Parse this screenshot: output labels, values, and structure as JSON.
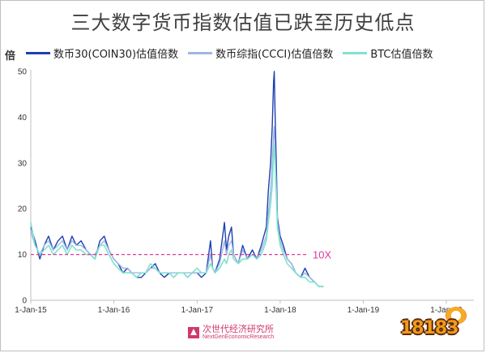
{
  "chart_data": {
    "type": "line",
    "title": "三大数字货币指数估值已跌至历史低点",
    "ylabel": "倍",
    "ylim": [
      0,
      50
    ],
    "y_ticks": [
      0,
      10,
      20,
      30,
      40,
      50
    ],
    "x_ticks": [
      "1-Jan-15",
      "1-Jan-16",
      "1-Jan-17",
      "1-Jan-18",
      "1-Jan-19",
      "1-Jan-20"
    ],
    "xlim": [
      "2015-01-01",
      "2020-05-01"
    ],
    "grid": false,
    "legend_position": "top",
    "reference_line": {
      "value": 10,
      "label": "10X",
      "color": "#e0399a"
    },
    "series": [
      {
        "name": "数币30(COIN30)估值倍数",
        "color": "#1f3fb0",
        "points": [
          [
            "2015-01-01",
            16
          ],
          [
            "2015-01-20",
            13
          ],
          [
            "2015-02-10",
            9
          ],
          [
            "2015-03-01",
            12
          ],
          [
            "2015-03-20",
            14
          ],
          [
            "2015-04-10",
            11
          ],
          [
            "2015-05-01",
            13
          ],
          [
            "2015-05-20",
            14
          ],
          [
            "2015-06-10",
            11
          ],
          [
            "2015-07-01",
            14
          ],
          [
            "2015-07-20",
            12
          ],
          [
            "2015-08-10",
            13
          ],
          [
            "2015-09-01",
            11
          ],
          [
            "2015-09-20",
            10
          ],
          [
            "2015-10-10",
            9
          ],
          [
            "2015-11-01",
            13
          ],
          [
            "2015-11-20",
            14
          ],
          [
            "2015-12-10",
            11
          ],
          [
            "2016-01-01",
            9
          ],
          [
            "2016-01-20",
            8
          ],
          [
            "2016-02-10",
            6
          ],
          [
            "2016-03-01",
            7
          ],
          [
            "2016-03-20",
            6
          ],
          [
            "2016-04-10",
            5
          ],
          [
            "2016-05-01",
            5
          ],
          [
            "2016-05-20",
            6
          ],
          [
            "2016-06-10",
            7
          ],
          [
            "2016-07-01",
            8
          ],
          [
            "2016-07-20",
            6
          ],
          [
            "2016-08-10",
            5
          ],
          [
            "2016-09-01",
            6
          ],
          [
            "2016-09-20",
            5
          ],
          [
            "2016-10-10",
            6
          ],
          [
            "2016-11-01",
            6
          ],
          [
            "2016-11-20",
            5
          ],
          [
            "2016-12-10",
            6
          ],
          [
            "2017-01-01",
            6
          ],
          [
            "2017-01-20",
            5
          ],
          [
            "2017-02-10",
            6
          ],
          [
            "2017-03-01",
            13
          ],
          [
            "2017-03-10",
            7
          ],
          [
            "2017-03-20",
            6
          ],
          [
            "2017-04-10",
            9
          ],
          [
            "2017-05-01",
            17
          ],
          [
            "2017-05-10",
            11
          ],
          [
            "2017-05-20",
            14
          ],
          [
            "2017-06-01",
            16
          ],
          [
            "2017-06-10",
            10
          ],
          [
            "2017-07-01",
            8
          ],
          [
            "2017-07-20",
            12
          ],
          [
            "2017-08-10",
            9
          ],
          [
            "2017-09-01",
            11
          ],
          [
            "2017-09-20",
            9
          ],
          [
            "2017-10-10",
            12
          ],
          [
            "2017-11-01",
            16
          ],
          [
            "2017-11-10",
            24
          ],
          [
            "2017-11-20",
            30
          ],
          [
            "2017-11-27",
            38
          ],
          [
            "2017-12-03",
            48
          ],
          [
            "2017-12-06",
            50
          ],
          [
            "2017-12-10",
            40
          ],
          [
            "2017-12-15",
            30
          ],
          [
            "2017-12-20",
            18
          ],
          [
            "2018-01-01",
            14
          ],
          [
            "2018-01-15",
            12
          ],
          [
            "2018-02-01",
            9
          ],
          [
            "2018-02-20",
            8
          ],
          [
            "2018-03-10",
            6
          ],
          [
            "2018-04-01",
            5
          ],
          [
            "2018-04-20",
            7
          ],
          [
            "2018-05-10",
            5
          ],
          [
            "2018-06-01",
            4
          ],
          [
            "2018-06-20",
            3
          ],
          [
            "2018-07-10",
            3
          ]
        ]
      },
      {
        "name": "数币综指(CCCI)估值倍数",
        "color": "#9fb7e3",
        "points": [
          [
            "2015-01-01",
            15
          ],
          [
            "2015-01-20",
            12
          ],
          [
            "2015-02-10",
            10
          ],
          [
            "2015-03-01",
            12
          ],
          [
            "2015-03-20",
            13
          ],
          [
            "2015-04-10",
            11
          ],
          [
            "2015-05-01",
            12
          ],
          [
            "2015-05-20",
            13
          ],
          [
            "2015-06-10",
            11
          ],
          [
            "2015-07-01",
            13
          ],
          [
            "2015-07-20",
            12
          ],
          [
            "2015-08-10",
            12
          ],
          [
            "2015-09-01",
            11
          ],
          [
            "2015-09-20",
            10
          ],
          [
            "2015-10-10",
            10
          ],
          [
            "2015-11-01",
            12
          ],
          [
            "2015-11-20",
            13
          ],
          [
            "2015-12-10",
            11
          ],
          [
            "2016-01-01",
            9
          ],
          [
            "2016-01-20",
            8
          ],
          [
            "2016-02-10",
            7
          ],
          [
            "2016-03-01",
            7
          ],
          [
            "2016-03-20",
            6
          ],
          [
            "2016-04-10",
            6
          ],
          [
            "2016-05-01",
            6
          ],
          [
            "2016-05-20",
            6
          ],
          [
            "2016-06-10",
            7
          ],
          [
            "2016-07-01",
            7
          ],
          [
            "2016-07-20",
            6
          ],
          [
            "2016-08-10",
            6
          ],
          [
            "2016-09-01",
            6
          ],
          [
            "2016-09-20",
            6
          ],
          [
            "2016-10-10",
            6
          ],
          [
            "2016-11-01",
            6
          ],
          [
            "2016-11-20",
            6
          ],
          [
            "2016-12-10",
            6
          ],
          [
            "2017-01-01",
            6
          ],
          [
            "2017-01-20",
            6
          ],
          [
            "2017-02-10",
            6
          ],
          [
            "2017-03-01",
            10
          ],
          [
            "2017-03-10",
            7
          ],
          [
            "2017-03-20",
            6
          ],
          [
            "2017-04-10",
            8
          ],
          [
            "2017-05-01",
            13
          ],
          [
            "2017-05-10",
            10
          ],
          [
            "2017-05-20",
            12
          ],
          [
            "2017-06-01",
            13
          ],
          [
            "2017-06-10",
            10
          ],
          [
            "2017-07-01",
            8
          ],
          [
            "2017-07-20",
            11
          ],
          [
            "2017-08-10",
            9
          ],
          [
            "2017-09-01",
            10
          ],
          [
            "2017-09-20",
            9
          ],
          [
            "2017-10-10",
            11
          ],
          [
            "2017-11-01",
            14
          ],
          [
            "2017-11-10",
            19
          ],
          [
            "2017-11-20",
            24
          ],
          [
            "2017-11-27",
            30
          ],
          [
            "2017-12-03",
            36
          ],
          [
            "2017-12-06",
            38
          ],
          [
            "2017-12-10",
            32
          ],
          [
            "2017-12-15",
            25
          ],
          [
            "2017-12-20",
            17
          ],
          [
            "2018-01-01",
            13
          ],
          [
            "2018-01-15",
            11
          ],
          [
            "2018-02-01",
            9
          ],
          [
            "2018-02-20",
            8
          ],
          [
            "2018-03-10",
            6
          ],
          [
            "2018-04-01",
            5
          ],
          [
            "2018-04-20",
            6
          ],
          [
            "2018-05-10",
            5
          ],
          [
            "2018-06-01",
            4
          ],
          [
            "2018-06-20",
            3
          ],
          [
            "2018-07-10",
            3
          ]
        ]
      },
      {
        "name": "BTC估值倍数",
        "color": "#7fe3cf",
        "points": [
          [
            "2015-01-01",
            17
          ],
          [
            "2015-01-20",
            12
          ],
          [
            "2015-02-10",
            10
          ],
          [
            "2015-03-01",
            11
          ],
          [
            "2015-03-20",
            12
          ],
          [
            "2015-04-10",
            10
          ],
          [
            "2015-05-01",
            11
          ],
          [
            "2015-05-20",
            12
          ],
          [
            "2015-06-10",
            10
          ],
          [
            "2015-07-01",
            12
          ],
          [
            "2015-07-20",
            11
          ],
          [
            "2015-08-10",
            11
          ],
          [
            "2015-09-01",
            10
          ],
          [
            "2015-09-20",
            10
          ],
          [
            "2015-10-10",
            9
          ],
          [
            "2015-11-01",
            12
          ],
          [
            "2015-11-20",
            12
          ],
          [
            "2015-12-10",
            10
          ],
          [
            "2016-01-01",
            8
          ],
          [
            "2016-01-20",
            7
          ],
          [
            "2016-02-10",
            6
          ],
          [
            "2016-03-01",
            6
          ],
          [
            "2016-03-20",
            6
          ],
          [
            "2016-04-10",
            5
          ],
          [
            "2016-05-01",
            6
          ],
          [
            "2016-05-20",
            6
          ],
          [
            "2016-06-10",
            8
          ],
          [
            "2016-07-01",
            7
          ],
          [
            "2016-07-20",
            6
          ],
          [
            "2016-08-10",
            6
          ],
          [
            "2016-09-01",
            6
          ],
          [
            "2016-09-20",
            5
          ],
          [
            "2016-10-10",
            6
          ],
          [
            "2016-11-01",
            6
          ],
          [
            "2016-11-20",
            5
          ],
          [
            "2016-12-10",
            6
          ],
          [
            "2017-01-01",
            7
          ],
          [
            "2017-01-20",
            6
          ],
          [
            "2017-02-10",
            6
          ],
          [
            "2017-03-01",
            8
          ],
          [
            "2017-03-10",
            7
          ],
          [
            "2017-03-20",
            6
          ],
          [
            "2017-04-10",
            7
          ],
          [
            "2017-05-01",
            9
          ],
          [
            "2017-05-10",
            8
          ],
          [
            "2017-05-20",
            10
          ],
          [
            "2017-06-01",
            11
          ],
          [
            "2017-06-10",
            9
          ],
          [
            "2017-07-01",
            8
          ],
          [
            "2017-07-20",
            9
          ],
          [
            "2017-08-10",
            9
          ],
          [
            "2017-09-01",
            10
          ],
          [
            "2017-09-20",
            9
          ],
          [
            "2017-10-10",
            10
          ],
          [
            "2017-11-01",
            13
          ],
          [
            "2017-11-10",
            17
          ],
          [
            "2017-11-20",
            21
          ],
          [
            "2017-11-27",
            25
          ],
          [
            "2017-12-03",
            32
          ],
          [
            "2017-12-06",
            34
          ],
          [
            "2017-12-10",
            30
          ],
          [
            "2017-12-15",
            23
          ],
          [
            "2017-12-20",
            16
          ],
          [
            "2018-01-01",
            12
          ],
          [
            "2018-01-15",
            10
          ],
          [
            "2018-02-01",
            8
          ],
          [
            "2018-02-20",
            7
          ],
          [
            "2018-03-10",
            6
          ],
          [
            "2018-04-01",
            5
          ],
          [
            "2018-04-20",
            5
          ],
          [
            "2018-05-10",
            4
          ],
          [
            "2018-06-01",
            4
          ],
          [
            "2018-06-20",
            3
          ],
          [
            "2018-07-10",
            3
          ]
        ]
      }
    ]
  },
  "credit": {
    "cn": "次世代经济研究所",
    "en": "NextGenEconomicResearch"
  },
  "watermark": {
    "text": "18183"
  }
}
